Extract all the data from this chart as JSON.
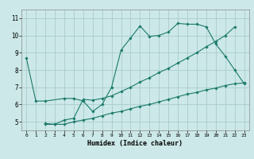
{
  "xlabel": "Humidex (Indice chaleur)",
  "bg_color": "#cce8e8",
  "grid_color": "#aacccc",
  "line_color": "#1a7a6a",
  "xlim": [
    -0.5,
    23.5
  ],
  "ylim": [
    4.5,
    11.5
  ],
  "xticks": [
    0,
    1,
    2,
    3,
    4,
    5,
    6,
    7,
    8,
    9,
    10,
    11,
    12,
    13,
    14,
    15,
    16,
    17,
    18,
    19,
    20,
    21,
    22,
    23
  ],
  "yticks": [
    5,
    6,
    7,
    8,
    9,
    10,
    11
  ],
  "line1_x": [
    0,
    1,
    2,
    4,
    5,
    6,
    7,
    8,
    9,
    10,
    11,
    12,
    13,
    14,
    15,
    16,
    17,
    18,
    19,
    20,
    21,
    22,
    23
  ],
  "line1_y": [
    8.7,
    6.2,
    6.2,
    6.35,
    6.35,
    6.2,
    5.6,
    6.0,
    7.0,
    9.15,
    9.85,
    10.55,
    9.95,
    10.0,
    10.2,
    10.7,
    10.65,
    10.65,
    10.5,
    9.5,
    8.8,
    8.0,
    7.2
  ],
  "line2_x": [
    2,
    3,
    4,
    5,
    6,
    7,
    8,
    9,
    10,
    11,
    12,
    13,
    14,
    15,
    16,
    17,
    18,
    19,
    20,
    21,
    22
  ],
  "line2_y": [
    4.9,
    4.85,
    5.1,
    5.2,
    6.3,
    6.25,
    6.35,
    6.5,
    6.75,
    7.0,
    7.3,
    7.55,
    7.85,
    8.1,
    8.4,
    8.7,
    9.0,
    9.35,
    9.65,
    10.0,
    10.5
  ],
  "line3_x": [
    2,
    3,
    4,
    5,
    6,
    7,
    8,
    9,
    10,
    11,
    12,
    13,
    14,
    15,
    16,
    17,
    18,
    19,
    20,
    21,
    22,
    23
  ],
  "line3_y": [
    4.85,
    4.85,
    4.85,
    5.0,
    5.1,
    5.2,
    5.35,
    5.5,
    5.6,
    5.75,
    5.9,
    6.0,
    6.15,
    6.3,
    6.45,
    6.6,
    6.7,
    6.85,
    6.95,
    7.1,
    7.2,
    7.25
  ]
}
